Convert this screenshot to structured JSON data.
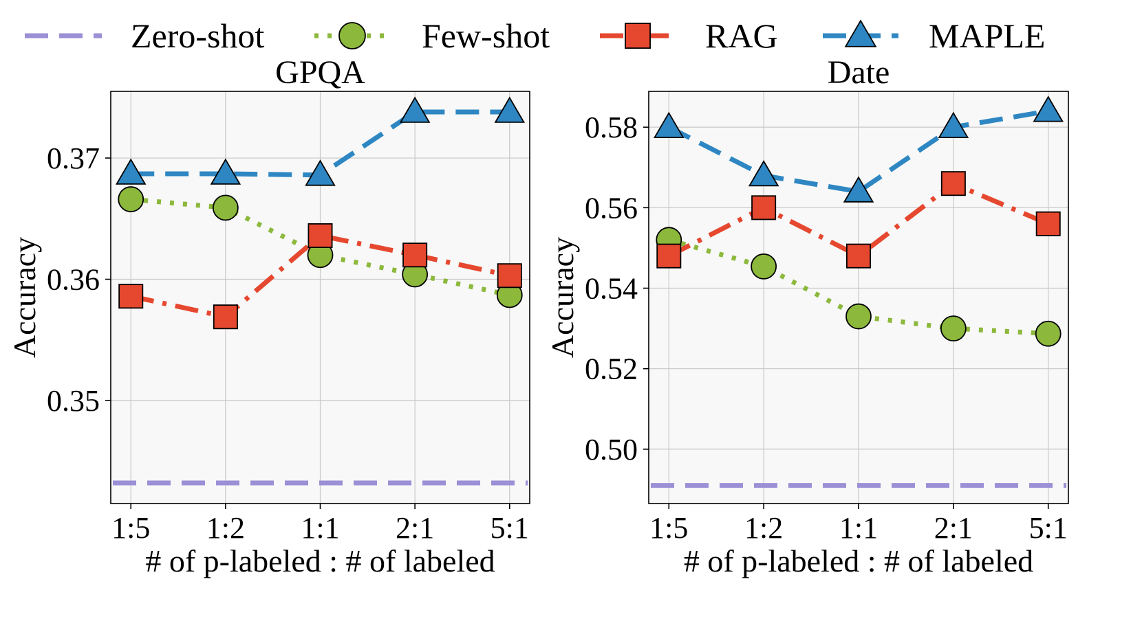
{
  "legend": [
    {
      "name": "Zero-shot",
      "color": "#9b8fd6",
      "marker": "none",
      "dash": "dashed"
    },
    {
      "name": "Few-shot",
      "color": "#8cb83c",
      "marker": "circle",
      "dash": "dotted"
    },
    {
      "name": "RAG",
      "color": "#e5482f",
      "marker": "square",
      "dash": "dashdot"
    },
    {
      "name": "MAPLE",
      "color": "#2e87c2",
      "marker": "triangle",
      "dash": "dashed"
    }
  ],
  "chart_data": [
    {
      "type": "line",
      "title": "GPQA",
      "xlabel": "# of p-labeled : # of labeled",
      "ylabel": "Accuracy",
      "categories": [
        "1:5",
        "1:2",
        "1:1",
        "2:1",
        "5:1"
      ],
      "ylim": [
        0.3415,
        0.3755
      ],
      "yticks": [
        0.35,
        0.36,
        0.37
      ],
      "ytick_labels": [
        "0.35",
        "0.36",
        "0.37"
      ],
      "grid": true,
      "series": [
        {
          "name": "Zero-shot",
          "values": [
            0.3432,
            0.3432,
            0.3432,
            0.3432,
            0.3432
          ]
        },
        {
          "name": "Few-shot",
          "values": [
            0.3666,
            0.3659,
            0.362,
            0.3604,
            0.3587
          ]
        },
        {
          "name": "RAG",
          "values": [
            0.3586,
            0.3569,
            0.3636,
            0.362,
            0.3603
          ]
        },
        {
          "name": "MAPLE",
          "values": [
            0.3687,
            0.3687,
            0.3686,
            0.3738,
            0.3738
          ]
        }
      ]
    },
    {
      "type": "line",
      "title": "Date",
      "xlabel": "# of p-labeled : # of labeled",
      "ylabel": "Accuracy",
      "categories": [
        "1:5",
        "1:2",
        "1:1",
        "2:1",
        "5:1"
      ],
      "ylim": [
        0.4865,
        0.5889
      ],
      "yticks": [
        0.5,
        0.52,
        0.54,
        0.56,
        0.58
      ],
      "ytick_labels": [
        "0.50",
        "0.52",
        "0.54",
        "0.56",
        "0.58"
      ],
      "grid": true,
      "series": [
        {
          "name": "Zero-shot",
          "values": [
            0.491,
            0.491,
            0.491,
            0.491,
            0.491
          ]
        },
        {
          "name": "Few-shot",
          "values": [
            0.552,
            0.5454,
            0.533,
            0.53,
            0.5287
          ]
        },
        {
          "name": "RAG",
          "values": [
            0.548,
            0.56,
            0.548,
            0.566,
            0.556
          ]
        },
        {
          "name": "MAPLE",
          "values": [
            0.58,
            0.568,
            0.564,
            0.58,
            0.584
          ]
        }
      ]
    }
  ]
}
